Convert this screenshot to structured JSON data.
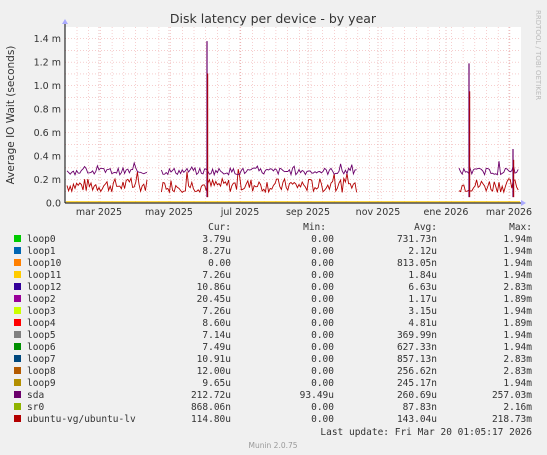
{
  "chart_data": {
    "type": "line",
    "title": "Disk latency per device - by year",
    "ylabel": "Average IO Wait (seconds)",
    "y_ticks": [
      "0.0",
      "0.2 m",
      "0.4 m",
      "0.6 m",
      "0.8 m",
      "1.0 m",
      "1.2 m",
      "1.4 m"
    ],
    "ylim": [
      0,
      1.5
    ],
    "y_unit": "m (milliseconds)",
    "x_ticks": [
      "mar 2025",
      "may 2025",
      "jul 2025",
      "sep 2025",
      "nov 2025",
      "ene 2026",
      "mar 2026"
    ],
    "grid": true,
    "legend_headers": {
      "cur": "Cur:",
      "min": "Min:",
      "avg": "Avg:",
      "max": "Max:"
    },
    "series": [
      {
        "name": "loop0",
        "color": "#00cc00",
        "cur": "3.79u",
        "min": "0.00",
        "avg": "731.73n",
        "max": "1.94m"
      },
      {
        "name": "loop1",
        "color": "#0066b3",
        "cur": "8.27u",
        "min": "0.00",
        "avg": "2.12u",
        "max": "1.94m"
      },
      {
        "name": "loop10",
        "color": "#ff8000",
        "cur": "0.00",
        "min": "0.00",
        "avg": "813.05n",
        "max": "1.94m"
      },
      {
        "name": "loop11",
        "color": "#ffcc00",
        "cur": "7.26u",
        "min": "0.00",
        "avg": "1.84u",
        "max": "1.94m"
      },
      {
        "name": "loop12",
        "color": "#330099",
        "cur": "10.86u",
        "min": "0.00",
        "avg": "6.63u",
        "max": "2.83m"
      },
      {
        "name": "loop2",
        "color": "#990099",
        "cur": "20.45u",
        "min": "0.00",
        "avg": "1.17u",
        "max": "1.89m"
      },
      {
        "name": "loop3",
        "color": "#ccff00",
        "cur": "7.26u",
        "min": "0.00",
        "avg": "3.15u",
        "max": "1.94m"
      },
      {
        "name": "loop4",
        "color": "#ff0000",
        "cur": "8.60u",
        "min": "0.00",
        "avg": "4.81u",
        "max": "1.89m"
      },
      {
        "name": "loop5",
        "color": "#808080",
        "cur": "7.14u",
        "min": "0.00",
        "avg": "369.99n",
        "max": "1.94m"
      },
      {
        "name": "loop6",
        "color": "#008f00",
        "cur": "7.49u",
        "min": "0.00",
        "avg": "627.33n",
        "max": "1.94m"
      },
      {
        "name": "loop7",
        "color": "#00487d",
        "cur": "10.91u",
        "min": "0.00",
        "avg": "857.13n",
        "max": "2.83m"
      },
      {
        "name": "loop8",
        "color": "#b35a00",
        "cur": "12.00u",
        "min": "0.00",
        "avg": "256.62n",
        "max": "2.83m"
      },
      {
        "name": "loop9",
        "color": "#b38f00",
        "cur": "9.65u",
        "min": "0.00",
        "avg": "245.17n",
        "max": "1.94m"
      },
      {
        "name": "sda",
        "color": "#6b006b",
        "cur": "212.72u",
        "min": "93.49u",
        "avg": "260.69u",
        "max": "257.03m"
      },
      {
        "name": "sr0",
        "color": "#8fb300",
        "cur": "868.06n",
        "min": "0.00",
        "avg": "87.83n",
        "max": "2.16m"
      },
      {
        "name": "ubuntu-vg/ubuntu-lv",
        "color": "#b30000",
        "cur": "114.80u",
        "min": "0.00",
        "avg": "143.04u",
        "max": "218.73m"
      }
    ],
    "approx_values": {
      "sda_baseline_m": 0.27,
      "lv_baseline_m": 0.15,
      "spikes_m": [
        {
          "x_index": 2.45,
          "series": "sda",
          "value": 1.38
        },
        {
          "x_index": 5.2,
          "series": "sda",
          "value": 1.19
        },
        {
          "x_index": 5.85,
          "series": "sda",
          "value": 0.46
        }
      ]
    }
  },
  "last_update": "Last update: Fri Mar 20 01:05:17 2026",
  "footer": "Munin 2.0.75",
  "side_label": "RRDTOOL / TOBI OETIKER"
}
